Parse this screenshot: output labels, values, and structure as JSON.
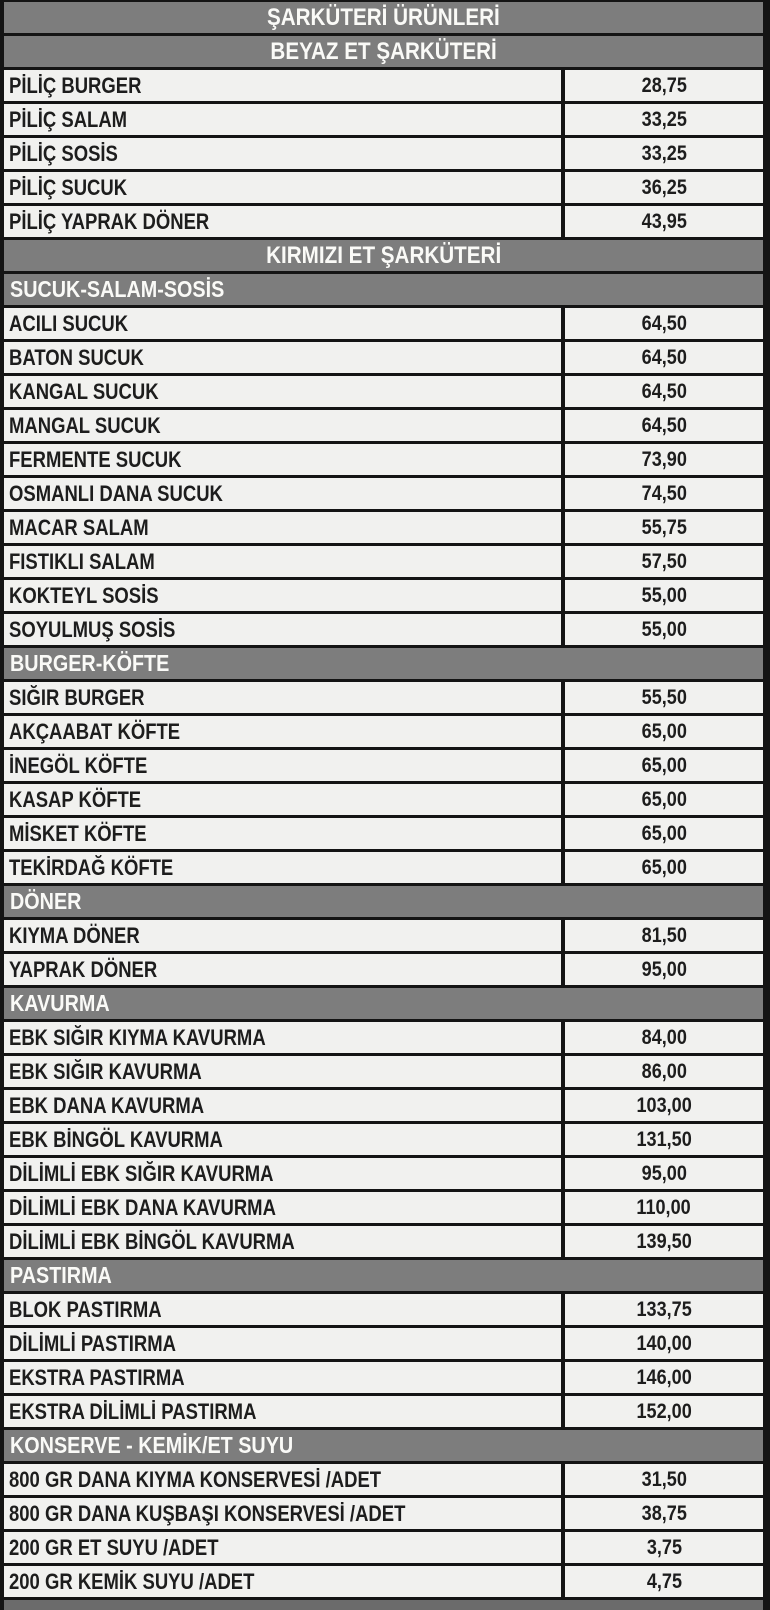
{
  "page_title": "ŞARKÜTERİ ÜRÜNLERİ",
  "colors": {
    "banner_gray": "#7d7d7d",
    "banner_text": "#fafaf7",
    "row_bg": "#f1f1ef",
    "row_text": "#1d1d1d",
    "grid_black": "#141414"
  },
  "table": {
    "columns": [
      "product",
      "price"
    ],
    "rows": [
      {
        "kind": "title",
        "label": "ŞARKÜTERİ ÜRÜNLERİ"
      },
      {
        "kind": "category",
        "label": "BEYAZ ET ŞARKÜTERİ"
      },
      {
        "kind": "item",
        "label": "PİLİÇ BURGER",
        "price": "28,75"
      },
      {
        "kind": "item",
        "label": "PİLİÇ SALAM",
        "price": "33,25"
      },
      {
        "kind": "item",
        "label": "PİLİÇ SOSİS",
        "price": "33,25"
      },
      {
        "kind": "item",
        "label": "PİLİÇ SUCUK",
        "price": "36,25"
      },
      {
        "kind": "item",
        "label": "PİLİÇ YAPRAK DÖNER",
        "price": "43,95"
      },
      {
        "kind": "category",
        "label": "KIRMIZI ET ŞARKÜTERİ"
      },
      {
        "kind": "section",
        "label": "SUCUK-SALAM-SOSİS"
      },
      {
        "kind": "item",
        "label": "ACILI SUCUK",
        "price": "64,50"
      },
      {
        "kind": "item",
        "label": "BATON SUCUK",
        "price": "64,50"
      },
      {
        "kind": "item",
        "label": "KANGAL SUCUK",
        "price": "64,50"
      },
      {
        "kind": "item",
        "label": "MANGAL SUCUK",
        "price": "64,50"
      },
      {
        "kind": "item",
        "label": "FERMENTE SUCUK",
        "price": "73,90"
      },
      {
        "kind": "item",
        "label": "OSMANLI DANA SUCUK",
        "price": "74,50"
      },
      {
        "kind": "item",
        "label": "MACAR SALAM",
        "price": "55,75"
      },
      {
        "kind": "item",
        "label": "FISTIKLI SALAM",
        "price": "57,50"
      },
      {
        "kind": "item",
        "label": "KOKTEYL SOSİS",
        "price": "55,00"
      },
      {
        "kind": "item",
        "label": "SOYULMUŞ SOSİS",
        "price": "55,00"
      },
      {
        "kind": "section",
        "label": "BURGER-KÖFTE"
      },
      {
        "kind": "item",
        "label": "SIĞIR BURGER",
        "price": "55,50"
      },
      {
        "kind": "item",
        "label": "AKÇAABAT KÖFTE",
        "price": "65,00"
      },
      {
        "kind": "item",
        "label": "İNEGÖL KÖFTE",
        "price": "65,00"
      },
      {
        "kind": "item",
        "label": "KASAP KÖFTE",
        "price": "65,00"
      },
      {
        "kind": "item",
        "label": "MİSKET KÖFTE",
        "price": "65,00"
      },
      {
        "kind": "item",
        "label": "TEKİRDAĞ KÖFTE",
        "price": "65,00"
      },
      {
        "kind": "section",
        "label": "DÖNER"
      },
      {
        "kind": "item",
        "label": "KIYMA DÖNER",
        "price": "81,50"
      },
      {
        "kind": "item",
        "label": "YAPRAK DÖNER",
        "price": "95,00"
      },
      {
        "kind": "section",
        "label": "KAVURMA"
      },
      {
        "kind": "item",
        "label": "EBK SIĞIR KIYMA KAVURMA",
        "price": "84,00"
      },
      {
        "kind": "item",
        "label": "EBK SIĞIR KAVURMA",
        "price": "86,00"
      },
      {
        "kind": "item",
        "label": "EBK DANA KAVURMA",
        "price": "103,00"
      },
      {
        "kind": "item",
        "label": "EBK BİNGÖL KAVURMA",
        "price": "131,50"
      },
      {
        "kind": "item",
        "label": "DİLİMLİ EBK SIĞIR KAVURMA",
        "price": "95,00"
      },
      {
        "kind": "item",
        "label": "DİLİMLİ EBK DANA KAVURMA",
        "price": "110,00"
      },
      {
        "kind": "item",
        "label": "DİLİMLİ EBK BİNGÖL KAVURMA",
        "price": "139,50"
      },
      {
        "kind": "section",
        "label": "PASTIRMA"
      },
      {
        "kind": "item",
        "label": "BLOK PASTIRMA",
        "price": "133,75"
      },
      {
        "kind": "item",
        "label": "DİLİMLİ PASTIRMA",
        "price": "140,00"
      },
      {
        "kind": "item",
        "label": "EKSTRA PASTIRMA",
        "price": "146,00"
      },
      {
        "kind": "item",
        "label": "EKSTRA DİLİMLİ PASTIRMA",
        "price": "152,00"
      },
      {
        "kind": "section",
        "label": "KONSERVE - KEMİK/ET SUYU"
      },
      {
        "kind": "item",
        "label": "800 GR  DANA KIYMA KONSERVESİ /ADET",
        "price": "31,50"
      },
      {
        "kind": "item",
        "label": "800 GR  DANA KUŞBAŞI KONSERVESİ /ADET",
        "price": "38,75"
      },
      {
        "kind": "item",
        "label": "200 GR  ET SUYU /ADET",
        "price": "3,75"
      },
      {
        "kind": "item",
        "label": "200 GR  KEMİK SUYU /ADET",
        "price": "4,75"
      }
    ]
  }
}
